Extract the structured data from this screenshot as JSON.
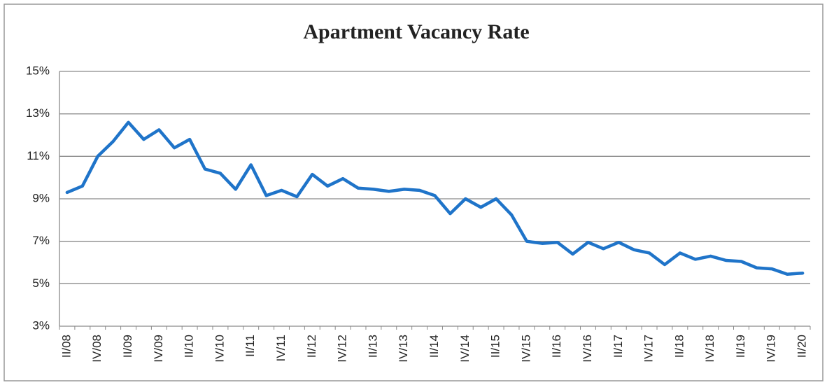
{
  "chart_data": {
    "type": "line",
    "title": "Apartment Vacancy Rate",
    "categories": [
      "II/08",
      null,
      "IV/08",
      null,
      "II/09",
      null,
      "IV/09",
      null,
      "II/10",
      null,
      "IV/10",
      null,
      "II/11",
      null,
      "IV/11",
      null,
      "II/12",
      null,
      "IV/12",
      null,
      "II/13",
      null,
      "IV/13",
      null,
      "II/14",
      null,
      "IV/14",
      null,
      "II/15",
      null,
      "IV/15",
      null,
      "II/16",
      null,
      "IV/16",
      null,
      "II/17",
      null,
      "IV/17",
      null,
      "II/18",
      null,
      "IV/18",
      null,
      "II/19",
      null,
      "IV/19",
      null,
      "II/20"
    ],
    "series": [
      {
        "name": "Apartment Vacancy Rate",
        "color": "#1f74c9",
        "values": [
          9.3,
          9.6,
          11.0,
          11.7,
          12.6,
          11.8,
          12.25,
          11.4,
          11.8,
          10.4,
          10.2,
          9.45,
          10.6,
          9.15,
          9.4,
          9.1,
          10.15,
          9.6,
          9.95,
          9.5,
          9.45,
          9.35,
          9.45,
          9.4,
          9.15,
          8.3,
          9.0,
          8.6,
          9.0,
          8.25,
          7.0,
          6.9,
          6.95,
          6.4,
          6.95,
          6.65,
          6.95,
          6.6,
          6.45,
          5.9,
          6.45,
          6.15,
          6.3,
          6.1,
          6.05,
          5.75,
          5.7,
          5.45,
          5.5
        ]
      }
    ],
    "ylim": [
      3,
      15
    ],
    "yticks": [
      {
        "value": 3,
        "label": "3%"
      },
      {
        "value": 5,
        "label": "5%"
      },
      {
        "value": 7,
        "label": "7%"
      },
      {
        "value": 9,
        "label": "9%"
      },
      {
        "value": 11,
        "label": "11%"
      },
      {
        "value": 13,
        "label": "13%"
      },
      {
        "value": 15,
        "label": "15%"
      }
    ],
    "grid": true
  }
}
